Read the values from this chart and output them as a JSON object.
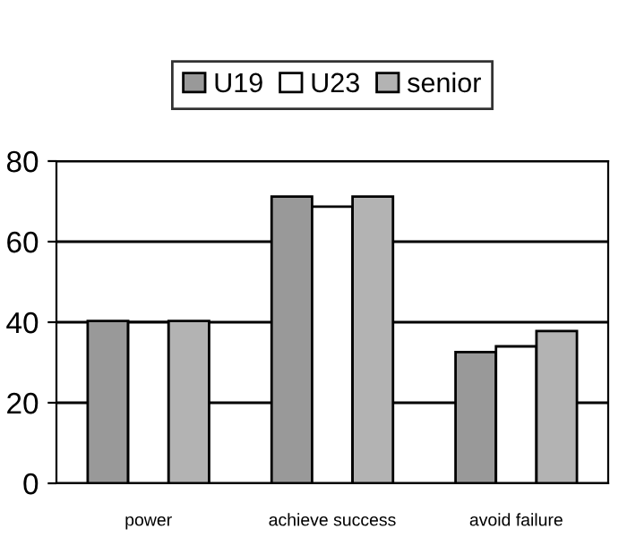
{
  "chart_data": {
    "type": "bar",
    "categories": [
      "power",
      "achieve success",
      "avoid failure"
    ],
    "series": [
      {
        "name": "U19",
        "color": "#999999",
        "values": [
          40.3,
          71.2,
          32.6
        ]
      },
      {
        "name": "U23",
        "color": "#ffffff",
        "values": [
          40,
          68.7,
          34
        ]
      },
      {
        "name": "senior",
        "color": "#b3b3b3",
        "values": [
          40.3,
          71.2,
          37.8
        ]
      }
    ],
    "ylim": [
      0,
      80
    ],
    "yticks": [
      0,
      20,
      40,
      60,
      80
    ],
    "grid": "y",
    "legend": "top"
  }
}
